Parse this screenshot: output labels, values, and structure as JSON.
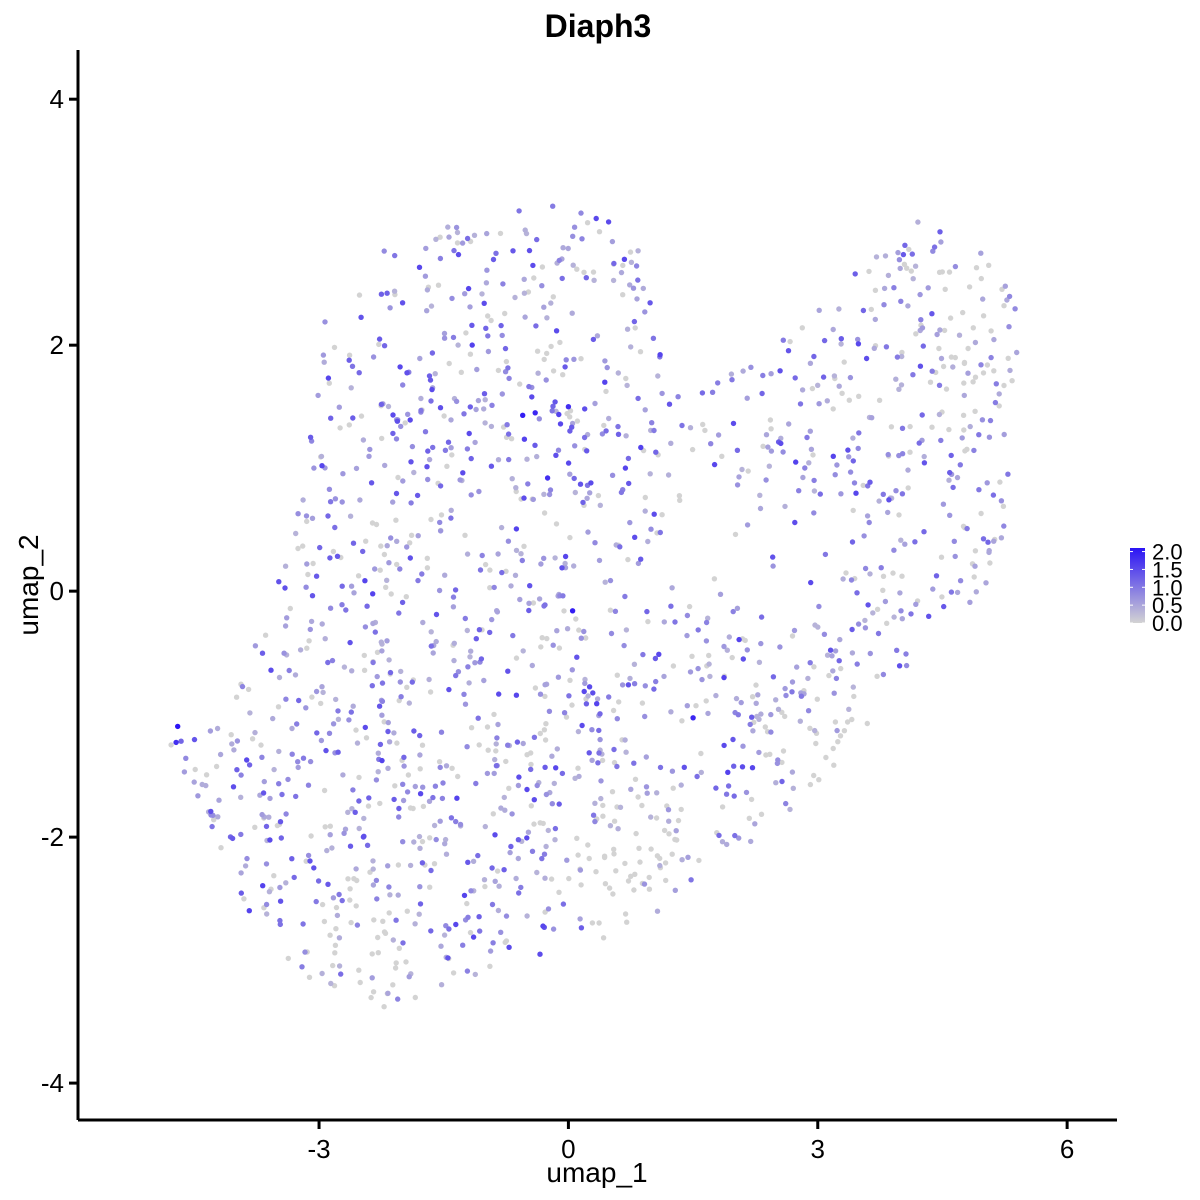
{
  "chart_data": {
    "type": "scatter",
    "title": "Diaph3",
    "xlabel": "umap_1",
    "ylabel": "umap_2",
    "xlim": [
      -5.9,
      6.6
    ],
    "ylim": [
      -4.3,
      4.4
    ],
    "xticks": [
      -3,
      0,
      3,
      6
    ],
    "yticks": [
      -4,
      -2,
      0,
      2,
      4
    ],
    "grid": false,
    "legend": {
      "placement": "right",
      "type": "color-gradient",
      "min": 0,
      "max": 2.1,
      "labels": [
        "2.0",
        "1.5",
        "1.0",
        "0.5",
        "0.0"
      ],
      "label_values": [
        2.0,
        1.5,
        1.0,
        0.5,
        0.0
      ],
      "color_low": "#d3d3d3",
      "color_high": "#2b14f5"
    },
    "cloud": {
      "description_values": "approximate shape of the expression point cloud in data units",
      "boundary": [
        [
          -4.7,
          -1.3
        ],
        [
          -4.2,
          -2.2
        ],
        [
          -3.5,
          -3.0
        ],
        [
          -2.7,
          -3.3
        ],
        [
          -2.1,
          -3.5
        ],
        [
          -1.4,
          -3.2
        ],
        [
          -0.6,
          -3.0
        ],
        [
          0.3,
          -2.9
        ],
        [
          1.0,
          -2.7
        ],
        [
          1.6,
          -2.4
        ],
        [
          2.3,
          -2.0
        ],
        [
          3.0,
          -1.6
        ],
        [
          3.7,
          -1.0
        ],
        [
          4.4,
          -0.4
        ],
        [
          5.0,
          0.0
        ],
        [
          5.4,
          0.8
        ],
        [
          5.4,
          2.4
        ],
        [
          4.9,
          2.8
        ],
        [
          4.4,
          3.1
        ],
        [
          3.6,
          2.7
        ],
        [
          3.0,
          2.3
        ],
        [
          2.5,
          2.0
        ],
        [
          1.8,
          1.7
        ],
        [
          1.2,
          1.6
        ],
        [
          1.0,
          2.3
        ],
        [
          0.8,
          2.9
        ],
        [
          0.2,
          3.15
        ],
        [
          -0.8,
          3.1
        ],
        [
          -2.0,
          2.9
        ],
        [
          -2.9,
          2.4
        ],
        [
          -3.1,
          1.4
        ],
        [
          -3.3,
          0.4
        ],
        [
          -3.7,
          -0.3
        ],
        [
          -4.1,
          -1.0
        ]
      ],
      "holes": [
        [
          [
            0.9,
            0.1
          ],
          [
            2.4,
            -0.2
          ],
          [
            3.2,
            -0.3
          ],
          [
            3.4,
            0.6
          ],
          [
            2.6,
            1.0
          ],
          [
            1.4,
            0.8
          ]
        ]
      ],
      "n_points": 1750,
      "outliers": [
        {
          "x": -4.7,
          "y": -1.1,
          "value": 2.1
        },
        {
          "x": -4.72,
          "y": -1.23,
          "value": 1.8
        },
        {
          "x": -4.66,
          "y": -1.22,
          "value": 1.2
        },
        {
          "x": -4.78,
          "y": -1.25,
          "value": 0.0
        },
        {
          "x": -4.62,
          "y": -1.47,
          "value": 0.6
        },
        {
          "x": -4.3,
          "y": -1.82,
          "value": 0.8
        }
      ],
      "bright_points": [
        {
          "x": -0.55,
          "y": 1.43,
          "value": 2.0
        },
        {
          "x": 0.05,
          "y": -0.16,
          "value": 2.0
        },
        {
          "x": 1.5,
          "y": -1.03,
          "value": 1.9
        },
        {
          "x": -0.4,
          "y": 1.45,
          "value": 1.9
        },
        {
          "x": -0.25,
          "y": 0.92,
          "value": 1.8
        },
        {
          "x": 0.0,
          "y": 1.5,
          "value": 1.8
        }
      ],
      "gray_regions": [
        {
          "cx": 4.9,
          "cy": 2.0,
          "rx": 0.7,
          "ry": 1.0
        },
        {
          "cx": 0.8,
          "cy": -2.1,
          "rx": 1.4,
          "ry": 0.9
        },
        {
          "cx": -2.4,
          "cy": -2.8,
          "rx": 1.0,
          "ry": 0.7
        },
        {
          "cx": 3.0,
          "cy": -1.2,
          "rx": 0.9,
          "ry": 0.5
        }
      ]
    }
  }
}
